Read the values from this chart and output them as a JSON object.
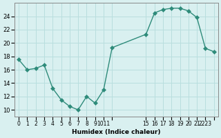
{
  "x": [
    0,
    1,
    2,
    3,
    4,
    5,
    6,
    7,
    8,
    9,
    10,
    11,
    15,
    16,
    17,
    18,
    19,
    20,
    21,
    22,
    23
  ],
  "y": [
    17.5,
    16.0,
    16.2,
    16.7,
    13.2,
    11.5,
    10.5,
    10.0,
    12.0,
    11.0,
    13.0,
    19.3,
    21.3,
    24.5,
    25.0,
    25.2,
    25.2,
    24.8,
    23.8,
    19.2,
    18.7
  ],
  "line_color": "#2e8b7a",
  "marker": "D",
  "marker_size": 3,
  "bg_color": "#d9f0f0",
  "grid_color": "#b8dede",
  "xlabel": "Humidex (Indice chaleur)",
  "ylim": [
    9,
    26
  ],
  "xlim": [
    -0.5,
    23.5
  ],
  "yticks": [
    10,
    12,
    14,
    16,
    18,
    20,
    22,
    24
  ],
  "xtick_positions": [
    0,
    1,
    2,
    3,
    4,
    5,
    6,
    7,
    8,
    9,
    10,
    11,
    15,
    16,
    17,
    18,
    19,
    20,
    21,
    22,
    23
  ],
  "xtick_labels": [
    "0",
    "1",
    "2",
    "3",
    "4",
    "5",
    "6",
    "7",
    "8",
    "9",
    "1011",
    "",
    "15",
    "16",
    "17",
    "18",
    "19",
    "20",
    "21",
    "2223",
    ""
  ]
}
